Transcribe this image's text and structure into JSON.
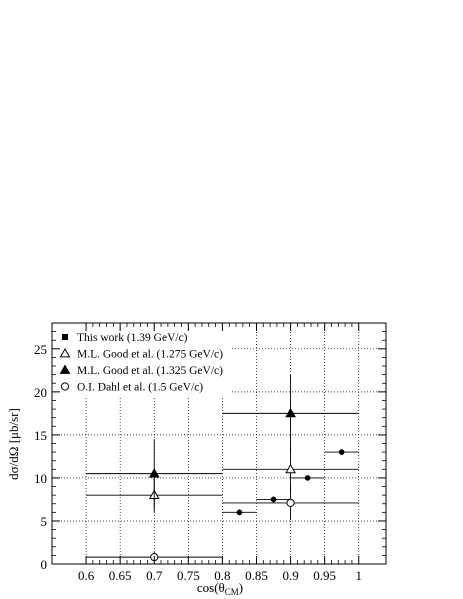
{
  "chart_data": {
    "type": "scatter",
    "xlabel_main": "cos(θ",
    "xlabel_sub": "CM",
    "xlabel_close": ")",
    "ylabel": "dσ/dΩ [μb/sr]",
    "xlim": [
      0.55,
      1.04
    ],
    "ylim": [
      0,
      28
    ],
    "x_ticks": [
      {
        "v": 0.6,
        "label": "0.6"
      },
      {
        "v": 0.65,
        "label": "0.65"
      },
      {
        "v": 0.7,
        "label": "0.7"
      },
      {
        "v": 0.75,
        "label": "0.75"
      },
      {
        "v": 0.8,
        "label": "0.8"
      },
      {
        "v": 0.85,
        "label": "0.85"
      },
      {
        "v": 0.9,
        "label": "0.9"
      },
      {
        "v": 0.95,
        "label": "0.95"
      },
      {
        "v": 1.0,
        "label": "1"
      }
    ],
    "y_ticks": [
      {
        "v": 0,
        "label": "0"
      },
      {
        "v": 5,
        "label": "5"
      },
      {
        "v": 10,
        "label": "10"
      },
      {
        "v": 15,
        "label": "15"
      },
      {
        "v": 20,
        "label": "20"
      },
      {
        "v": 25,
        "label": "25"
      }
    ],
    "grid": "dotted",
    "legend": "top-left",
    "series": [
      {
        "name": "This work (1.39 GeV/c)",
        "marker": "filled-circle",
        "legend_marker": "filled-square",
        "points": [
          {
            "x": 0.825,
            "y": 6.0,
            "xerr": 0.025,
            "yerr": 0.35
          },
          {
            "x": 0.875,
            "y": 7.5,
            "xerr": 0.025,
            "yerr": 0.35
          },
          {
            "x": 0.925,
            "y": 10.0,
            "xerr": 0.025,
            "yerr": 0.2
          },
          {
            "x": 0.975,
            "y": 13.0,
            "xerr": 0.025,
            "yerr": 0.2
          }
        ]
      },
      {
        "name": "M.L. Good et al. (1.275 GeV/c)",
        "marker": "open-triangle",
        "legend_marker": "open-triangle",
        "points": [
          {
            "x": 0.7,
            "y": 8.0,
            "xerr": 0.1,
            "yerr": 2.0
          },
          {
            "x": 0.9,
            "y": 11.0,
            "xerr": 0.1,
            "yerr": 2.5
          }
        ]
      },
      {
        "name": "M.L. Good et al. (1.325 GeV/c)",
        "marker": "filled-triangle",
        "legend_marker": "filled-triangle",
        "points": [
          {
            "x": 0.7,
            "y": 10.5,
            "xerr": 0.1,
            "yerr": 4.0
          },
          {
            "x": 0.9,
            "y": 17.5,
            "xerr": 0.1,
            "yerr": 4.5
          }
        ]
      },
      {
        "name": "O.I. Dahl et al. (1.5 GeV/c)",
        "marker": "open-circle",
        "legend_marker": "open-circle",
        "points": [
          {
            "x": 0.7,
            "y": 0.8,
            "xerr": 0.1,
            "yerr": 0.6
          },
          {
            "x": 0.9,
            "y": 7.1,
            "xerr": 0.1,
            "yerr": 2.0
          }
        ]
      }
    ]
  }
}
